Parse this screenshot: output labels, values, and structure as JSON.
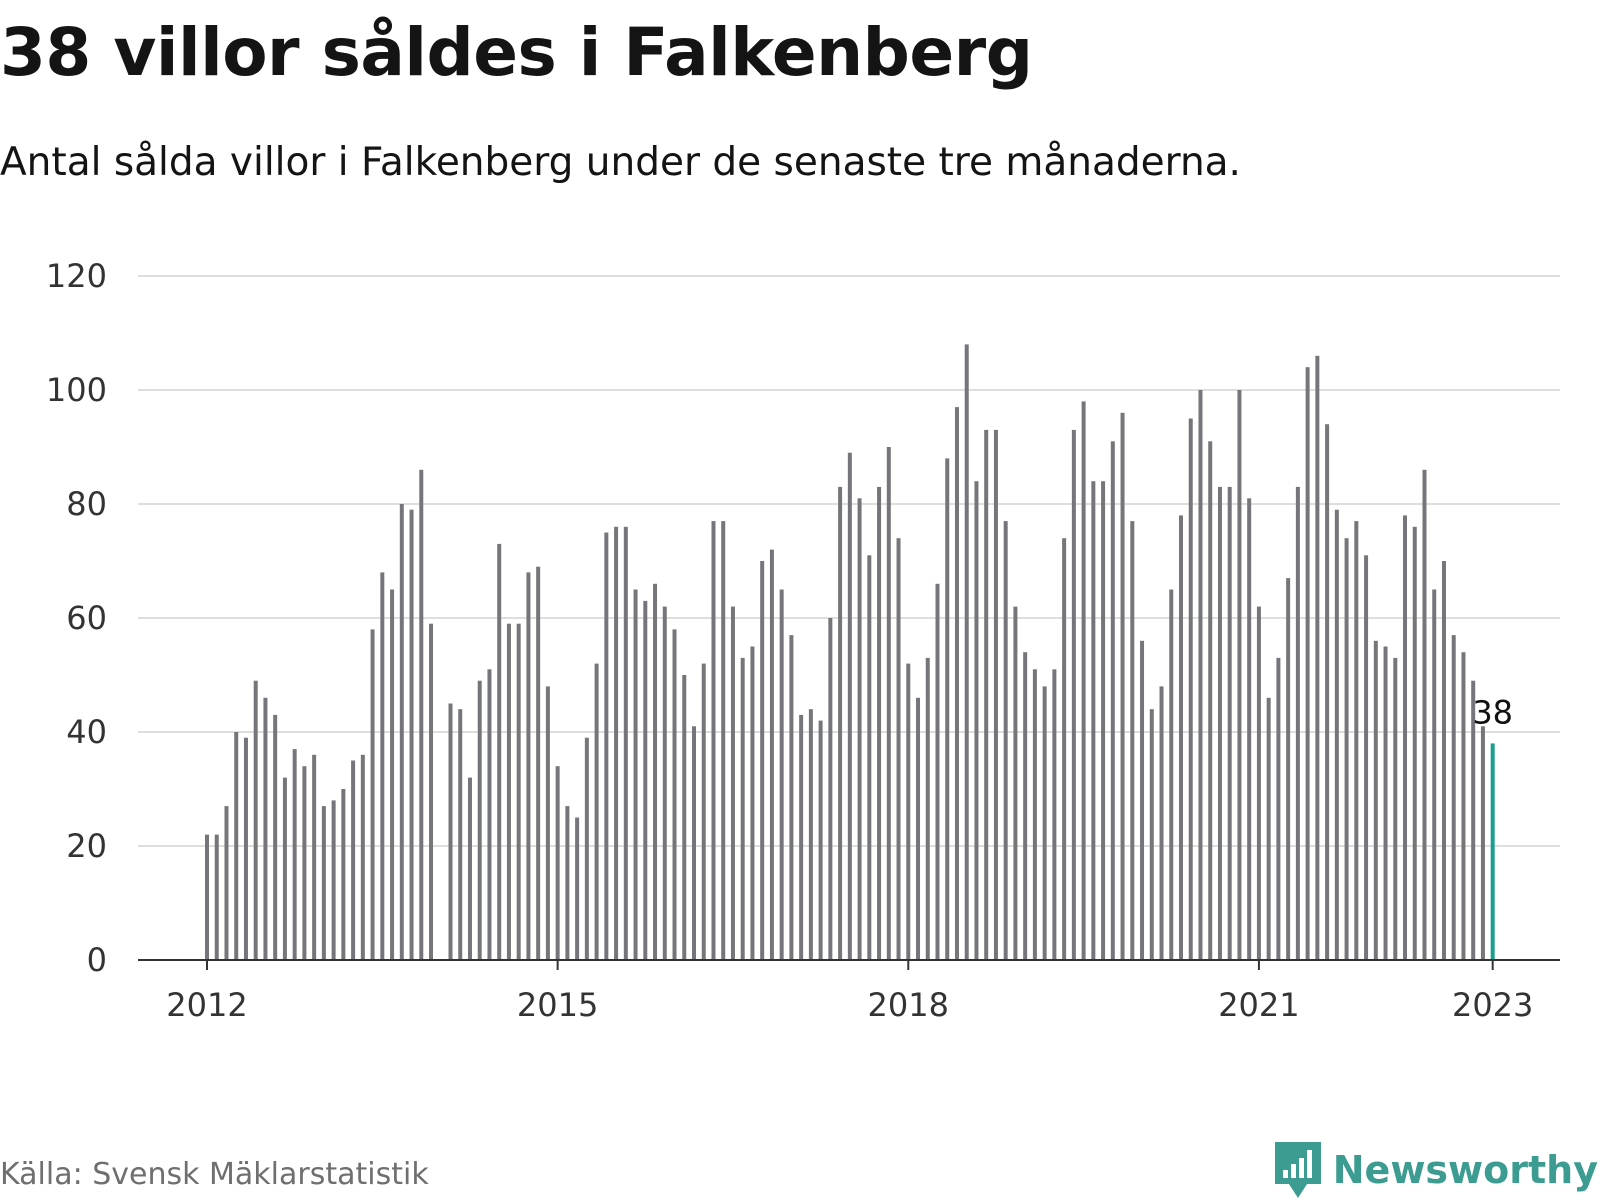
{
  "title": "38 villor såldes i Falkenberg",
  "subtitle": "Antal sålda villor i Falkenberg under de senaste tre månaderna.",
  "source": "Källa: Svensk Mäklarstatistik",
  "brand": {
    "name": "Newsworthy",
    "icon": "newsworthy-logo-icon",
    "color": "#3d9c92"
  },
  "colors": {
    "bar": "#76767a",
    "highlight": "#1a9e92",
    "grid": "#dedede",
    "axis": "#333333"
  },
  "chart_data": {
    "type": "bar",
    "title": "38 villor såldes i Falkenberg",
    "subtitle": "Antal sålda villor i Falkenberg under de senaste tre månaderna.",
    "xlabel": "",
    "ylabel": "",
    "ylim": [
      0,
      120
    ],
    "yticks": [
      0,
      20,
      40,
      60,
      80,
      100,
      120
    ],
    "xticks": [
      {
        "label": "2012",
        "date": "2012-01"
      },
      {
        "label": "2015",
        "date": "2015-01"
      },
      {
        "label": "2018",
        "date": "2018-01"
      },
      {
        "label": "2021",
        "date": "2021-01"
      },
      {
        "label": "2023",
        "date": "2023-01"
      }
    ],
    "grid": true,
    "last_value_label": "38",
    "categories": [
      "2012-01",
      "2012-02",
      "2012-03",
      "2012-04",
      "2012-05",
      "2012-06",
      "2012-07",
      "2012-08",
      "2012-09",
      "2012-10",
      "2012-11",
      "2012-12",
      "2013-01",
      "2013-02",
      "2013-03",
      "2013-04",
      "2013-05",
      "2013-06",
      "2013-07",
      "2013-08",
      "2013-09",
      "2013-10",
      "2013-11",
      "2013-12",
      "2014-01",
      "2014-02",
      "2014-03",
      "2014-04",
      "2014-05",
      "2014-06",
      "2014-07",
      "2014-08",
      "2014-09",
      "2014-10",
      "2014-11",
      "2014-12",
      "2015-01",
      "2015-02",
      "2015-03",
      "2015-04",
      "2015-05",
      "2015-06",
      "2015-07",
      "2015-08",
      "2015-09",
      "2015-10",
      "2015-11",
      "2015-12",
      "2016-01",
      "2016-02",
      "2016-03",
      "2016-04",
      "2016-05",
      "2016-06",
      "2016-07",
      "2016-08",
      "2016-09",
      "2016-10",
      "2016-11",
      "2016-12",
      "2017-01",
      "2017-02",
      "2017-03",
      "2017-04",
      "2017-05",
      "2017-06",
      "2017-07",
      "2017-08",
      "2017-09",
      "2017-10",
      "2017-11",
      "2017-12",
      "2018-01",
      "2018-02",
      "2018-03",
      "2018-04",
      "2018-05",
      "2018-06",
      "2018-07",
      "2018-08",
      "2018-09",
      "2018-10",
      "2018-11",
      "2018-12",
      "2019-01",
      "2019-02",
      "2019-03",
      "2019-04",
      "2019-05",
      "2019-06",
      "2019-07",
      "2019-08",
      "2019-09",
      "2019-10",
      "2019-11",
      "2019-12",
      "2020-01",
      "2020-02",
      "2020-03",
      "2020-04",
      "2020-05",
      "2020-06",
      "2020-07",
      "2020-08",
      "2020-09",
      "2020-10",
      "2020-11",
      "2020-12",
      "2021-01",
      "2021-02",
      "2021-03",
      "2021-04",
      "2021-05",
      "2021-06",
      "2021-07",
      "2021-08",
      "2021-09",
      "2021-10",
      "2021-11",
      "2021-12",
      "2022-01",
      "2022-02",
      "2022-03",
      "2022-04",
      "2022-05",
      "2022-06",
      "2022-07",
      "2022-08",
      "2022-09",
      "2022-10",
      "2022-11",
      "2022-12",
      "2023-01"
    ],
    "values": [
      22,
      22,
      27,
      40,
      39,
      49,
      46,
      43,
      32,
      37,
      34,
      36,
      27,
      28,
      30,
      35,
      36,
      58,
      68,
      65,
      80,
      79,
      86,
      59,
      null,
      45,
      44,
      32,
      49,
      51,
      73,
      59,
      59,
      68,
      69,
      48,
      34,
      27,
      25,
      39,
      52,
      75,
      76,
      76,
      65,
      63,
      66,
      62,
      58,
      50,
      41,
      52,
      77,
      77,
      62,
      53,
      55,
      70,
      72,
      65,
      57,
      43,
      44,
      42,
      60,
      83,
      89,
      81,
      71,
      83,
      90,
      74,
      52,
      46,
      53,
      66,
      88,
      97,
      108,
      84,
      93,
      93,
      77,
      62,
      54,
      51,
      48,
      51,
      74,
      93,
      98,
      84,
      84,
      91,
      96,
      77,
      56,
      44,
      48,
      65,
      78,
      95,
      100,
      91,
      83,
      83,
      100,
      81,
      62,
      46,
      53,
      67,
      83,
      104,
      106,
      94,
      79,
      74,
      77,
      71,
      56,
      55,
      53,
      78,
      76,
      86,
      65,
      70,
      57,
      54,
      49,
      41,
      38
    ]
  }
}
